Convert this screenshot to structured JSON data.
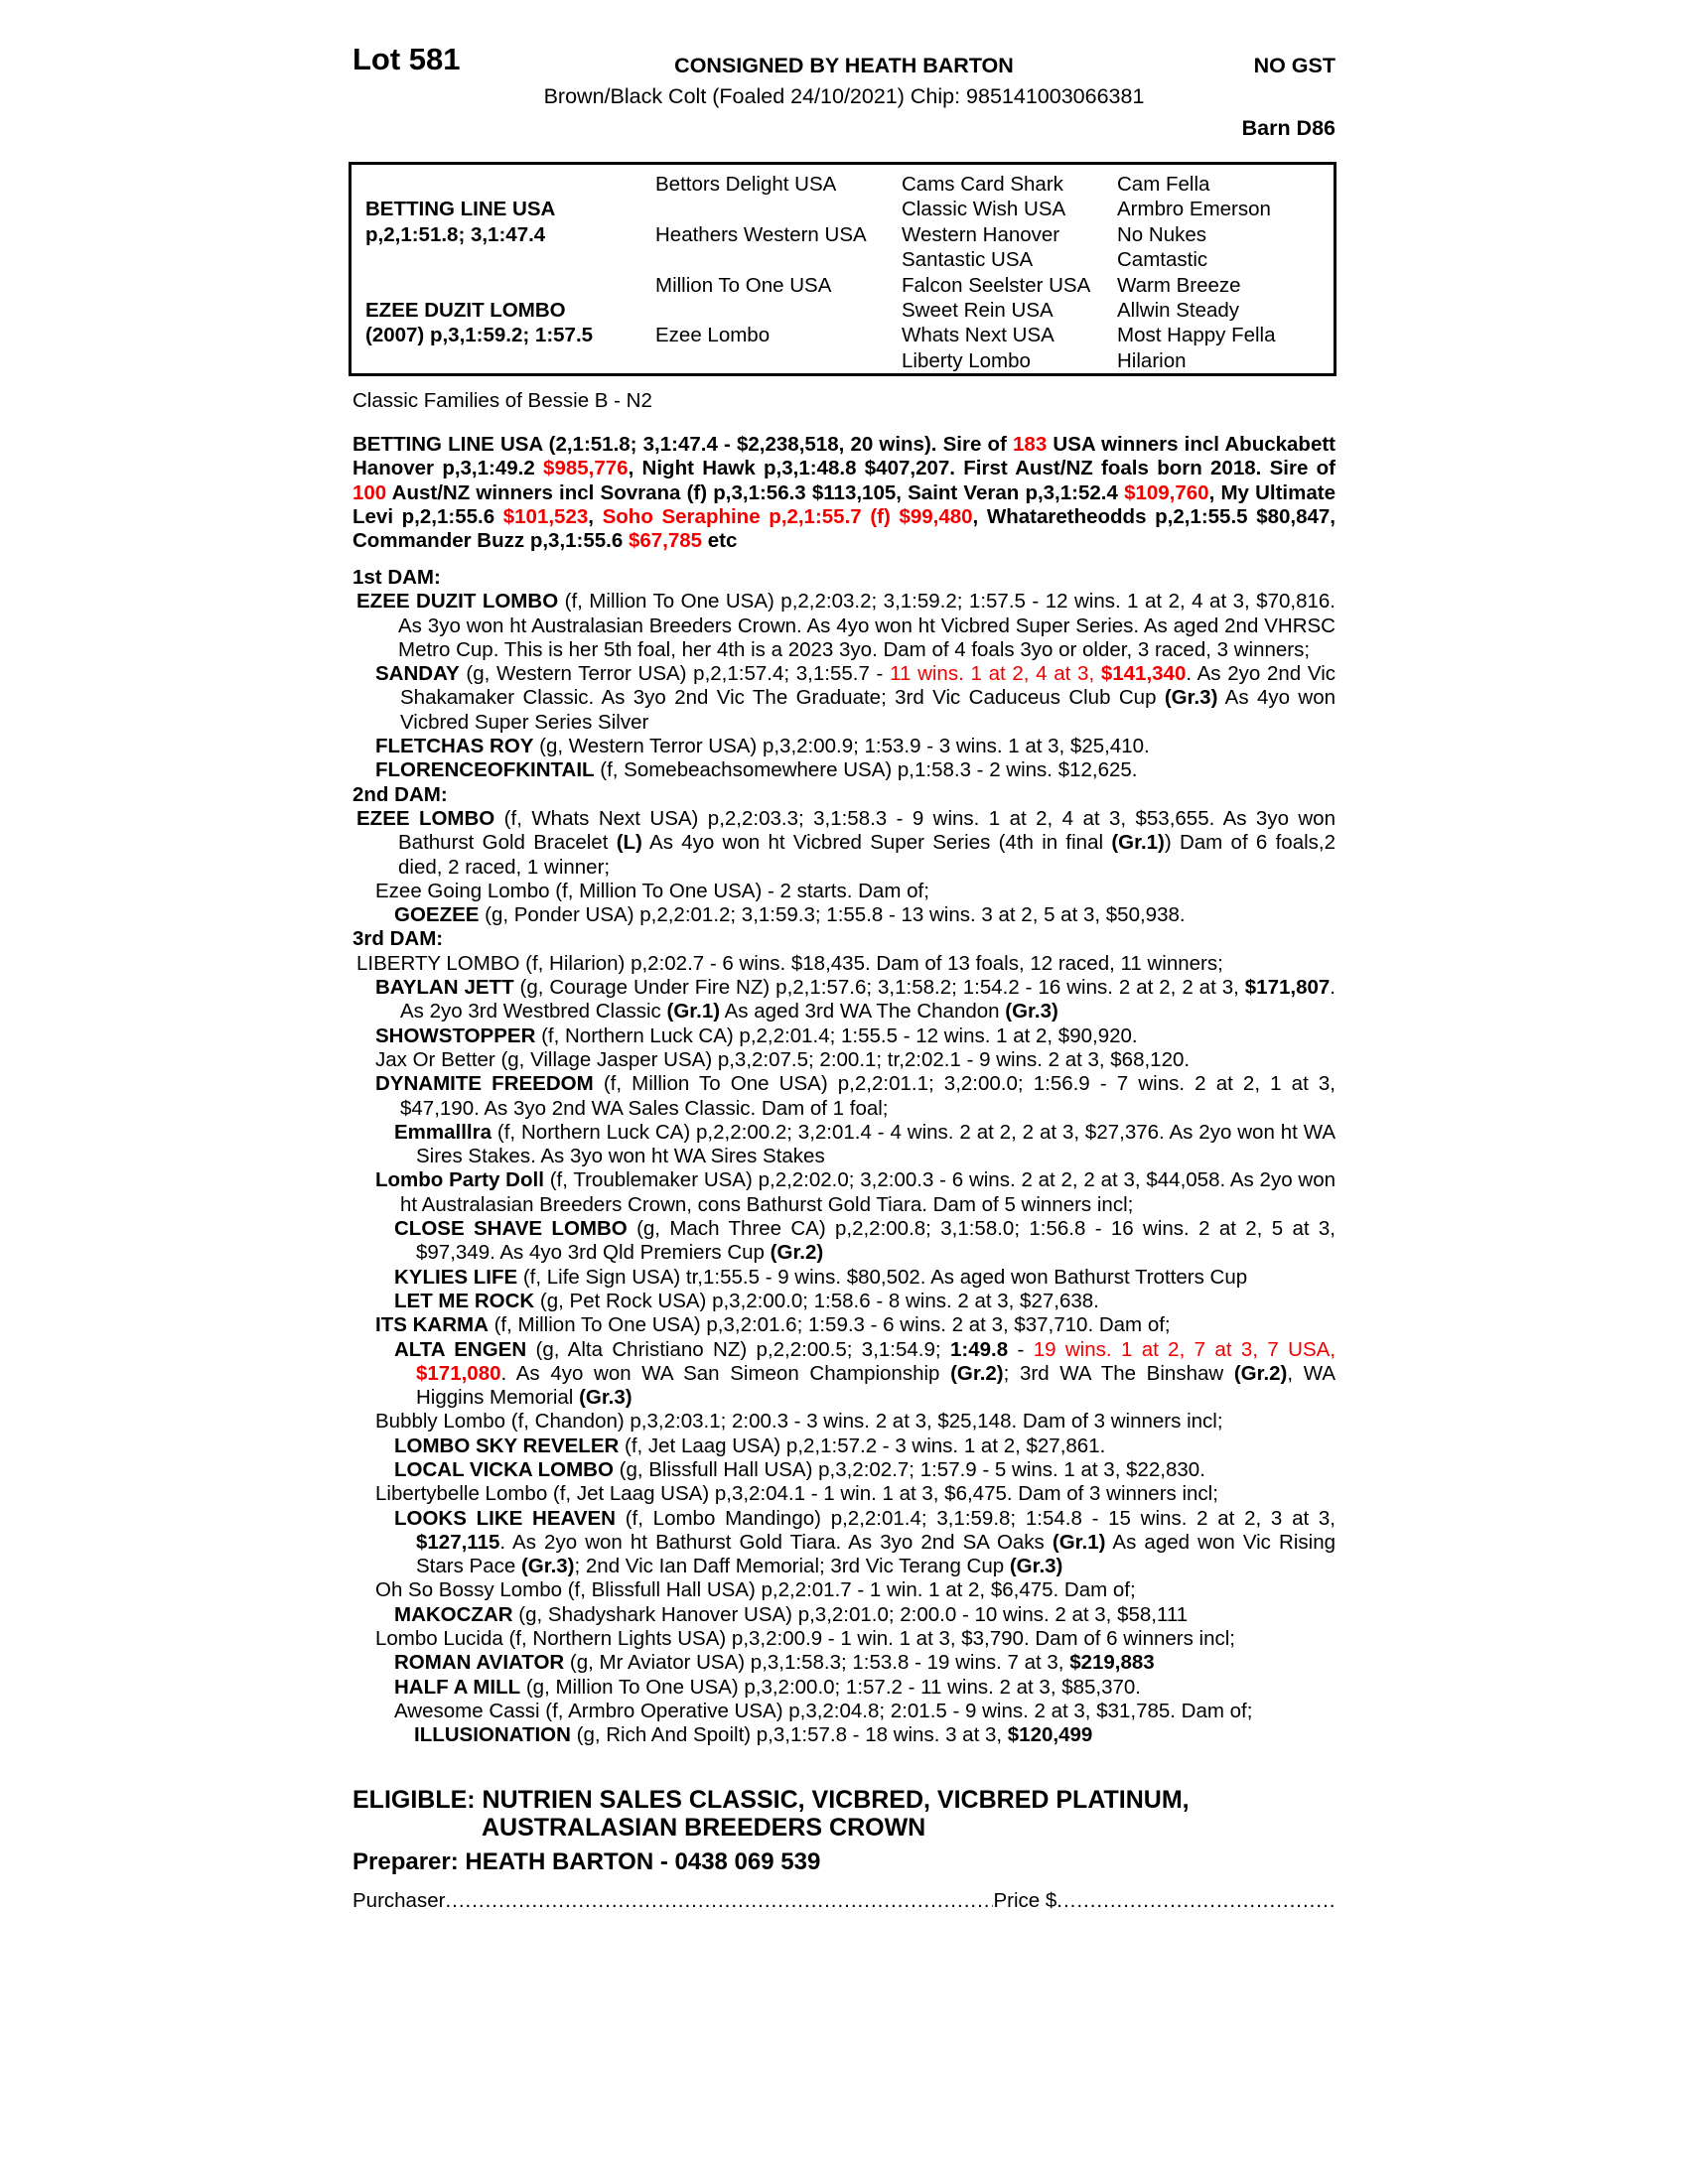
{
  "header": {
    "lot": "Lot 581",
    "consigned": "CONSIGNED BY HEATH BARTON",
    "no_gst": "NO GST",
    "description": "Brown/Black Colt (Foaled 24/10/2021) Chip: 985141003066381",
    "barn": "Barn D86"
  },
  "pedigree": {
    "rows": [
      [
        "",
        "Bettors Delight USA",
        "Cams Card Shark",
        "Cam Fella"
      ],
      [
        "BETTING LINE USA",
        "",
        "Classic Wish USA",
        "Armbro Emerson"
      ],
      [
        "p,2,1:51.8; 3,1:47.4",
        "Heathers Western USA",
        "Western Hanover",
        "No Nukes"
      ],
      [
        "",
        "",
        "Santastic USA",
        "Camtastic"
      ],
      [
        "",
        "Million To One USA",
        "Falcon Seelster USA",
        "Warm Breeze"
      ],
      [
        "EZEE DUZIT LOMBO",
        "",
        "Sweet Rein USA",
        "Allwin Steady"
      ],
      [
        "(2007) p,3,1:59.2; 1:57.5",
        "Ezee Lombo",
        "Whats Next USA",
        "Most Happy Fella"
      ],
      [
        "",
        "",
        "Liberty Lombo",
        "Hilarion"
      ]
    ]
  },
  "family_line": "Classic Families of Bessie B - N2",
  "sire_paragraph": [
    {
      "t": "BETTING LINE USA (2,1:51.8; 3,1:47.4 - $2,238,518, 20 wins). Sire of ",
      "s": "b"
    },
    {
      "t": "183",
      "s": "br"
    },
    {
      "t": " USA winners incl Abuckabett Hanover p,3,1:49.2 ",
      "s": "b"
    },
    {
      "t": "$985,776",
      "s": "br"
    },
    {
      "t": ", Night Hawk p,3,1:48.8 $407,207. First Aust/NZ foals born 2018. Sire of ",
      "s": "b"
    },
    {
      "t": "100",
      "s": "br"
    },
    {
      "t": " Aust/NZ winners incl Sovrana (f) p,3,1:56.3 $113,105, Saint Veran p,3,1:52.4 ",
      "s": "b"
    },
    {
      "t": "$109,760",
      "s": "br"
    },
    {
      "t": ", My Ultimate Levi p,2,1:55.6 ",
      "s": "b"
    },
    {
      "t": "$101,523",
      "s": "br"
    },
    {
      "t": ", ",
      "s": "b"
    },
    {
      "t": "Soho Seraphine p,2,1:55.7 (f) $99,480",
      "s": "br"
    },
    {
      "t": ", Whataretheodds p,2,1:55.5 $80,847, Commander Buzz p,3,1:55.6 ",
      "s": "b"
    },
    {
      "t": "$67,785",
      "s": "br"
    },
    {
      "t": " etc",
      "s": "b"
    }
  ],
  "entries": [
    {
      "level": 0,
      "segments": [
        {
          "t": "1st DAM:",
          "s": "b"
        }
      ]
    },
    {
      "level": 1,
      "segments": [
        {
          "t": "EZEE DUZIT LOMBO",
          "s": "b"
        },
        {
          "t": " (f, Million To One USA) p,2,2:03.2; 3,1:59.2; 1:57.5 - 12 wins. 1 at 2, 4 at 3, $70,816. As 3yo won ht Australasian Breeders Crown. As 4yo won ht Vicbred Super Series. As aged 2nd VHRSC Metro Cup. This is her 5th foal, her 4th is a 2023 3yo. Dam of 4 foals 3yo or older, 3 raced, 3 winners;",
          "s": ""
        }
      ]
    },
    {
      "level": 2,
      "segments": [
        {
          "t": "SANDAY",
          "s": "b"
        },
        {
          "t": " (g, Western Terror USA) p,2,1:57.4; 3,1:55.7 - ",
          "s": ""
        },
        {
          "t": "11 wins. 1 at 2, 4 at 3, ",
          "s": "r"
        },
        {
          "t": "$141,340",
          "s": "br"
        },
        {
          "t": ". As 2yo 2nd Vic Shakamaker Classic. As 3yo 2nd Vic The Graduate; 3rd Vic Caduceus Club Cup ",
          "s": ""
        },
        {
          "t": "(Gr.3)",
          "s": "b"
        },
        {
          "t": " As 4yo won Vicbred Super Series Silver",
          "s": ""
        }
      ]
    },
    {
      "level": 2,
      "segments": [
        {
          "t": "FLETCHAS ROY",
          "s": "b"
        },
        {
          "t": " (g, Western Terror USA) p,3,2:00.9; 1:53.9 - 3 wins. 1 at 3, $25,410.",
          "s": ""
        }
      ]
    },
    {
      "level": 2,
      "segments": [
        {
          "t": "FLORENCEOFKINTAIL",
          "s": "b"
        },
        {
          "t": " (f, Somebeachsomewhere USA) p,1:58.3 - 2 wins. $12,625.",
          "s": ""
        }
      ]
    },
    {
      "level": 0,
      "segments": [
        {
          "t": "2nd DAM:",
          "s": "b"
        }
      ]
    },
    {
      "level": 1,
      "segments": [
        {
          "t": "EZEE LOMBO",
          "s": "b"
        },
        {
          "t": " (f, Whats Next USA) p,2,2:03.3; 3,1:58.3 - 9 wins. 1 at 2, 4 at 3, $53,655. As 3yo won Bathurst Gold Bracelet ",
          "s": ""
        },
        {
          "t": "(L)",
          "s": "b"
        },
        {
          "t": " As 4yo won ht Vicbred Super Series (4th in final ",
          "s": ""
        },
        {
          "t": "(Gr.1)",
          "s": "b"
        },
        {
          "t": ") Dam of 6 foals,2 died, 2 raced, 1 winner;",
          "s": ""
        }
      ]
    },
    {
      "level": 2,
      "segments": [
        {
          "t": "Ezee Going Lombo (f, Million To One USA) - 2 starts. Dam of;",
          "s": ""
        }
      ]
    },
    {
      "level": 3,
      "segments": [
        {
          "t": "GOEZEE",
          "s": "b"
        },
        {
          "t": " (g, Ponder USA) p,2,2:01.2; 3,1:59.3; 1:55.8 - 13 wins. 3 at 2, 5 at 3, $50,938.",
          "s": ""
        }
      ]
    },
    {
      "level": 0,
      "segments": [
        {
          "t": "3rd DAM:",
          "s": "b"
        }
      ]
    },
    {
      "level": 1,
      "segments": [
        {
          "t": "LIBERTY LOMBO (f, Hilarion) p,2:02.7 - 6 wins. $18,435. Dam of 13 foals, 12 raced, 11 winners;",
          "s": ""
        }
      ]
    },
    {
      "level": 2,
      "segments": [
        {
          "t": "BAYLAN JETT",
          "s": "b"
        },
        {
          "t": " (g, Courage Under Fire NZ) p,2,1:57.6; 3,1:58.2; 1:54.2 - 16 wins. 2 at 2, 2 at 3, ",
          "s": ""
        },
        {
          "t": "$171,807",
          "s": "b"
        },
        {
          "t": ". As 2yo 3rd Westbred Classic ",
          "s": ""
        },
        {
          "t": "(Gr.1)",
          "s": "b"
        },
        {
          "t": " As aged 3rd WA The Chandon ",
          "s": ""
        },
        {
          "t": "(Gr.3)",
          "s": "b"
        }
      ]
    },
    {
      "level": 2,
      "segments": [
        {
          "t": "SHOWSTOPPER",
          "s": "b"
        },
        {
          "t": " (f, Northern Luck CA) p,2,2:01.4; 1:55.5 - 12 wins. 1 at 2, $90,920.",
          "s": ""
        }
      ]
    },
    {
      "level": 2,
      "segments": [
        {
          "t": "Jax Or Better (g, Village Jasper USA) p,3,2:07.5; 2:00.1; tr,2:02.1 - 9 wins. 2 at 3, $68,120.",
          "s": ""
        }
      ]
    },
    {
      "level": 2,
      "segments": [
        {
          "t": "DYNAMITE FREEDOM",
          "s": "b"
        },
        {
          "t": " (f, Million To One USA) p,2,2:01.1; 3,2:00.0; 1:56.9 - 7 wins. 2 at 2, 1 at 3, $47,190. As 3yo 2nd WA Sales Classic. Dam of 1 foal;",
          "s": ""
        }
      ]
    },
    {
      "level": 3,
      "segments": [
        {
          "t": "Emmalllra",
          "s": "b"
        },
        {
          "t": " (f, Northern Luck CA) p,2,2:00.2; 3,2:01.4 - 4 wins. 2 at 2, 2 at 3, $27,376. As 2yo won ht WA Sires Stakes. As 3yo won ht WA Sires Stakes",
          "s": ""
        }
      ]
    },
    {
      "level": 2,
      "segments": [
        {
          "t": "Lombo Party Doll",
          "s": "b"
        },
        {
          "t": " (f, Troublemaker USA) p,2,2:02.0; 3,2:00.3 - 6 wins. 2 at 2, 2 at 3, $44,058. As 2yo won ht Australasian Breeders Crown, cons Bathurst Gold Tiara. Dam of 5 winners incl;",
          "s": ""
        }
      ]
    },
    {
      "level": 3,
      "segments": [
        {
          "t": "CLOSE SHAVE LOMBO",
          "s": "b"
        },
        {
          "t": " (g, Mach Three CA) p,2,2:00.8; 3,1:58.0; 1:56.8 - 16 wins. 2 at 2, 5 at 3, $97,349. As 4yo 3rd Qld Premiers Cup ",
          "s": ""
        },
        {
          "t": "(Gr.2)",
          "s": "b"
        }
      ]
    },
    {
      "level": 3,
      "segments": [
        {
          "t": "KYLIES LIFE",
          "s": "b"
        },
        {
          "t": " (f, Life Sign USA) tr,1:55.5 - 9 wins. $80,502. As aged won Bathurst Trotters Cup",
          "s": ""
        }
      ]
    },
    {
      "level": 3,
      "segments": [
        {
          "t": "LET ME ROCK",
          "s": "b"
        },
        {
          "t": " (g, Pet Rock USA) p,3,2:00.0; 1:58.6 - 8 wins. 2 at 3, $27,638.",
          "s": ""
        }
      ]
    },
    {
      "level": 2,
      "segments": [
        {
          "t": "ITS KARMA",
          "s": "b"
        },
        {
          "t": " (f, Million To One USA) p,3,2:01.6; 1:59.3 - 6 wins. 2 at 3, $37,710. Dam of;",
          "s": ""
        }
      ]
    },
    {
      "level": 3,
      "segments": [
        {
          "t": "ALTA ENGEN",
          "s": "b"
        },
        {
          "t": " (g, Alta Christiano NZ) p,2,2:00.5; 3,1:54.9; ",
          "s": ""
        },
        {
          "t": "1:49.8",
          "s": "b"
        },
        {
          "t": " - ",
          "s": ""
        },
        {
          "t": "19 wins. 1 at 2, 7 at 3, 7 USA, ",
          "s": "r"
        },
        {
          "t": "$171,080",
          "s": "br"
        },
        {
          "t": ". As 4yo won WA San Simeon Championship ",
          "s": ""
        },
        {
          "t": "(Gr.2)",
          "s": "b"
        },
        {
          "t": "; 3rd WA The Binshaw ",
          "s": ""
        },
        {
          "t": "(Gr.2)",
          "s": "b"
        },
        {
          "t": ", WA Higgins Memorial ",
          "s": ""
        },
        {
          "t": "(Gr.3)",
          "s": "b"
        }
      ]
    },
    {
      "level": 2,
      "segments": [
        {
          "t": "Bubbly Lombo (f, Chandon) p,3,2:03.1; 2:00.3 - 3 wins. 2 at 3, $25,148. Dam of 3 winners incl;",
          "s": ""
        }
      ]
    },
    {
      "level": 3,
      "segments": [
        {
          "t": "LOMBO SKY REVELER",
          "s": "b"
        },
        {
          "t": " (f, Jet Laag USA) p,2,1:57.2 - 3 wins. 1 at 2, $27,861.",
          "s": ""
        }
      ]
    },
    {
      "level": 3,
      "segments": [
        {
          "t": "LOCAL VICKA LOMBO",
          "s": "b"
        },
        {
          "t": " (g, Blissfull Hall USA) p,3,2:02.7; 1:57.9 - 5 wins. 1 at 3, $22,830.",
          "s": ""
        }
      ]
    },
    {
      "level": 2,
      "segments": [
        {
          "t": "Libertybelle Lombo (f, Jet Laag USA) p,3,2:04.1 - 1 win. 1 at 3, $6,475. Dam of 3 winners incl;",
          "s": ""
        }
      ]
    },
    {
      "level": 3,
      "segments": [
        {
          "t": "LOOKS LIKE HEAVEN",
          "s": "b"
        },
        {
          "t": " (f, Lombo Mandingo) p,2,2:01.4; 3,1:59.8; 1:54.8 - 15 wins. 2 at 2, 3 at 3, ",
          "s": ""
        },
        {
          "t": "$127,115",
          "s": "b"
        },
        {
          "t": ". As 2yo won ht Bathurst Gold Tiara. As 3yo 2nd SA Oaks ",
          "s": ""
        },
        {
          "t": "(Gr.1)",
          "s": "b"
        },
        {
          "t": " As aged won Vic Rising Stars Pace ",
          "s": ""
        },
        {
          "t": "(Gr.3)",
          "s": "b"
        },
        {
          "t": "; 2nd Vic Ian Daff Memorial; 3rd Vic Terang Cup ",
          "s": ""
        },
        {
          "t": "(Gr.3)",
          "s": "b"
        }
      ]
    },
    {
      "level": 2,
      "segments": [
        {
          "t": "Oh So Bossy Lombo (f, Blissfull Hall USA) p,2,2:01.7 - 1 win. 1 at 2, $6,475. Dam of;",
          "s": ""
        }
      ]
    },
    {
      "level": 3,
      "segments": [
        {
          "t": "MAKOCZAR",
          "s": "b"
        },
        {
          "t": " (g, Shadyshark Hanover USA) p,3,2:01.0; 2:00.0 - 10 wins. 2 at 3, $58,111",
          "s": ""
        }
      ]
    },
    {
      "level": 2,
      "segments": [
        {
          "t": "Lombo Lucida (f, Northern Lights USA) p,3,2:00.9 - 1 win. 1 at 3, $3,790. Dam of 6 winners incl;",
          "s": ""
        }
      ]
    },
    {
      "level": 3,
      "segments": [
        {
          "t": "ROMAN AVIATOR",
          "s": "b"
        },
        {
          "t": " (g, Mr Aviator USA) p,3,1:58.3; 1:53.8 - 19 wins. 7 at 3, ",
          "s": ""
        },
        {
          "t": "$219,883",
          "s": "b"
        }
      ]
    },
    {
      "level": 3,
      "segments": [
        {
          "t": "HALF A MILL",
          "s": "b"
        },
        {
          "t": " (g, Million To One USA) p,3,2:00.0; 1:57.2 - 11 wins. 2 at 3, $85,370.",
          "s": ""
        }
      ]
    },
    {
      "level": 3,
      "segments": [
        {
          "t": "Awesome Cassi (f, Armbro Operative USA) p,3,2:04.8; 2:01.5 - 9 wins. 2 at 3, $31,785. Dam of;",
          "s": ""
        }
      ]
    },
    {
      "level": 4,
      "segments": [
        {
          "t": "ILLUSIONATION",
          "s": "b"
        },
        {
          "t": " (g, Rich And Spoilt) p,3,1:57.8 - 18 wins. 3 at 3, ",
          "s": ""
        },
        {
          "t": "$120,499",
          "s": "b"
        }
      ]
    }
  ],
  "footer": {
    "eligible_line1": "ELIGIBLE: NUTRIEN SALES CLASSIC, VICBRED, VICBRED PLATINUM,",
    "eligible_line2": "AUSTRALASIAN BREEDERS CROWN",
    "preparer": "Preparer: HEATH BARTON - 0438 069 539",
    "purchaser_label": "Purchaser",
    "price_label": "Price $",
    "purchaser_dots": "........................................................................................................................................",
    "price_dots": "........................................................................................."
  }
}
